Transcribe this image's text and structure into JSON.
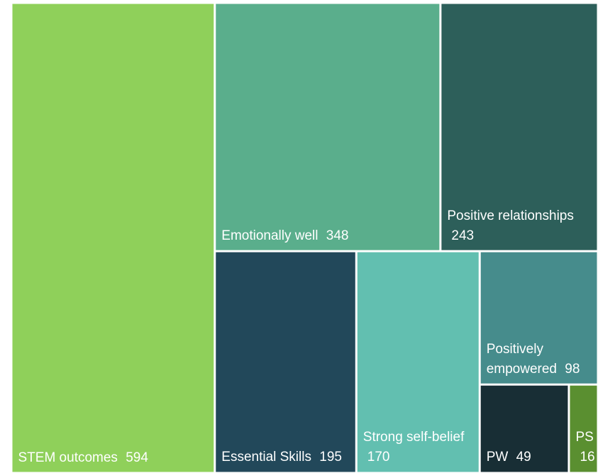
{
  "chart_data": {
    "type": "treemap",
    "categories": [
      "STEM outcomes",
      "Emotionally well",
      "Positive relationships",
      "Essential Skills",
      "Strong self-belief",
      "Positively empowered",
      "PW",
      "PS"
    ],
    "values": [
      594,
      348,
      243,
      195,
      170,
      98,
      49,
      16
    ],
    "colors": [
      "#8fd05a",
      "#5aae8c",
      "#2d5f5a",
      "#22485a",
      "#62bfb0",
      "#468c8c",
      "#182e35",
      "#5a8f30"
    ]
  }
}
